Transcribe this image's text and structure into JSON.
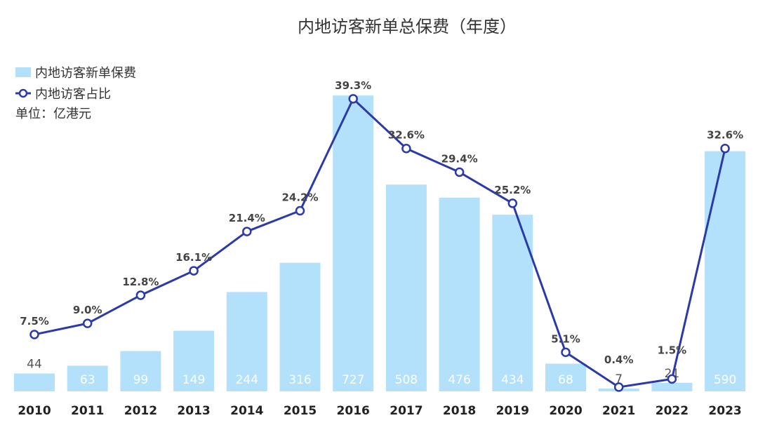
{
  "chart_data": {
    "type": "bar+line",
    "title": "内地访客新单总保费（年度）",
    "categories": [
      "2010",
      "2011",
      "2012",
      "2013",
      "2014",
      "2015",
      "2016",
      "2017",
      "2018",
      "2019",
      "2020",
      "2021",
      "2022",
      "2023"
    ],
    "series": [
      {
        "name": "内地访客新单保费",
        "type": "bar",
        "values": [
          44,
          63,
          99,
          149,
          244,
          316,
          727,
          508,
          476,
          434,
          68,
          7,
          21,
          590
        ]
      },
      {
        "name": "内地访客占比",
        "type": "line",
        "values": [
          7.5,
          9.0,
          12.8,
          16.1,
          21.4,
          24.2,
          39.3,
          32.6,
          29.4,
          25.2,
          5.1,
          0.4,
          1.5,
          32.6
        ],
        "labels": [
          "7.5%",
          "9.0%",
          "12.8%",
          "16.1%",
          "21.4%",
          "24.2%",
          "39.3%",
          "32.6%",
          "29.4%",
          "25.2%",
          "5.1%",
          "0.4%",
          "1.5%",
          "32.6%"
        ]
      }
    ],
    "unit": "单位：亿港元",
    "legend_position": "top-left",
    "bar_ylim": [
      0,
      760
    ],
    "line_ylim": [
      0,
      41
    ],
    "colors": {
      "bar": "#b3e1fb",
      "line": "#2b3aa8"
    }
  }
}
